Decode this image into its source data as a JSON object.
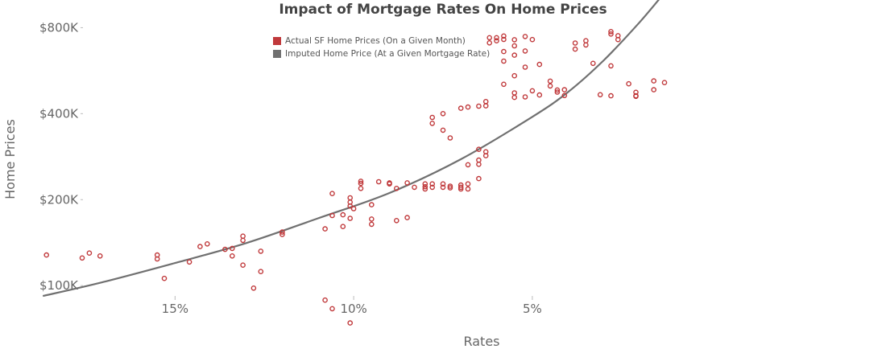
{
  "chart_data": {
    "type": "scatter",
    "title": "Impact of Mortgage Rates On Home Prices",
    "xlabel": "Rates",
    "ylabel": "Home Prices",
    "x_axis_reversed": true,
    "y_scale": "log",
    "xlim": [
      19.9,
      -4.9
    ],
    "ylim": [
      60000,
      1000000
    ],
    "x_ticks": [
      {
        "value": 15,
        "label": "15%"
      },
      {
        "value": 10,
        "label": "10%"
      },
      {
        "value": 5,
        "label": "5%"
      }
    ],
    "y_ticks": [
      {
        "value": 100000,
        "label": "$100K"
      },
      {
        "value": 200000,
        "label": "$200K"
      },
      {
        "value": 400000,
        "label": "$400K"
      },
      {
        "value": 800000,
        "label": "$800K"
      }
    ],
    "grid": false,
    "legend_position": "top-center",
    "series": [
      {
        "name": "Actual SF Home Prices (On a Given Month)",
        "color": "#c0393b",
        "marker": "open-circle",
        "points": [
          [
            18.6,
            128000
          ],
          [
            17.6,
            125000
          ],
          [
            17.4,
            130000
          ],
          [
            17.1,
            127000
          ],
          [
            15.5,
            128000
          ],
          [
            15.5,
            124000
          ],
          [
            15.3,
            106000
          ],
          [
            14.6,
            121000
          ],
          [
            14.3,
            137000
          ],
          [
            14.1,
            140000
          ],
          [
            13.6,
            134000
          ],
          [
            13.4,
            135000
          ],
          [
            13.4,
            127000
          ],
          [
            13.1,
            144000
          ],
          [
            13.1,
            149000
          ],
          [
            13.1,
            118000
          ],
          [
            12.8,
            98000
          ],
          [
            12.6,
            132000
          ],
          [
            12.6,
            112000
          ],
          [
            12.0,
            154000
          ],
          [
            12.0,
            151000
          ],
          [
            10.8,
            158000
          ],
          [
            10.8,
            89000
          ],
          [
            10.6,
            210000
          ],
          [
            10.6,
            176000
          ],
          [
            10.6,
            83000
          ],
          [
            10.3,
            177000
          ],
          [
            10.3,
            161000
          ],
          [
            10.1,
            203000
          ],
          [
            10.1,
            196000
          ],
          [
            10.1,
            190000
          ],
          [
            10.1,
            172000
          ],
          [
            10.1,
            74000
          ],
          [
            9.8,
            232000
          ],
          [
            9.8,
            228000
          ],
          [
            9.8,
            219000
          ],
          [
            10.0,
            186000
          ],
          [
            9.5,
            192000
          ],
          [
            9.5,
            171000
          ],
          [
            9.5,
            164000
          ],
          [
            9.3,
            231000
          ],
          [
            9.0,
            227000
          ],
          [
            9.0,
            229000
          ],
          [
            8.8,
            219000
          ],
          [
            8.8,
            169000
          ],
          [
            8.5,
            229000
          ],
          [
            8.5,
            173000
          ],
          [
            8.3,
            221000
          ],
          [
            8.0,
            227000
          ],
          [
            8.0,
            222000
          ],
          [
            8.0,
            218000
          ],
          [
            7.8,
            388000
          ],
          [
            7.8,
            370000
          ],
          [
            7.8,
            227000
          ],
          [
            7.8,
            221000
          ],
          [
            7.5,
            400000
          ],
          [
            7.5,
            350000
          ],
          [
            7.5,
            227000
          ],
          [
            7.5,
            221000
          ],
          [
            7.3,
            329000
          ],
          [
            7.3,
            223000
          ],
          [
            7.3,
            220000
          ],
          [
            7.0,
            418000
          ],
          [
            7.0,
            225000
          ],
          [
            7.0,
            221000
          ],
          [
            7.0,
            218000
          ],
          [
            6.8,
            422000
          ],
          [
            6.8,
            265000
          ],
          [
            6.8,
            227000
          ],
          [
            6.8,
            218000
          ],
          [
            6.5,
            425000
          ],
          [
            6.5,
            300000
          ],
          [
            6.5,
            275000
          ],
          [
            6.5,
            266000
          ],
          [
            6.5,
            237000
          ],
          [
            6.3,
            441000
          ],
          [
            6.3,
            426000
          ],
          [
            6.3,
            294000
          ],
          [
            6.3,
            285000
          ],
          [
            6.2,
            738000
          ],
          [
            6.2,
            708000
          ],
          [
            6.0,
            738000
          ],
          [
            6.0,
            720000
          ],
          [
            5.8,
            748000
          ],
          [
            5.8,
            728000
          ],
          [
            5.8,
            660000
          ],
          [
            5.8,
            611000
          ],
          [
            5.8,
            507000
          ],
          [
            5.5,
            726000
          ],
          [
            5.5,
            691000
          ],
          [
            5.5,
            641000
          ],
          [
            5.5,
            543000
          ],
          [
            5.5,
            473000
          ],
          [
            5.5,
            456000
          ],
          [
            5.2,
            745000
          ],
          [
            5.2,
            663000
          ],
          [
            5.2,
            582000
          ],
          [
            5.2,
            458000
          ],
          [
            5.0,
            727000
          ],
          [
            5.0,
            481000
          ],
          [
            4.8,
            595000
          ],
          [
            4.8,
            465000
          ],
          [
            4.5,
            520000
          ],
          [
            4.5,
            500000
          ],
          [
            4.3,
            484000
          ],
          [
            4.3,
            476000
          ],
          [
            4.1,
            485000
          ],
          [
            4.1,
            463000
          ],
          [
            3.8,
            707000
          ],
          [
            3.8,
            673000
          ],
          [
            3.5,
            720000
          ],
          [
            3.5,
            696000
          ],
          [
            3.3,
            600000
          ],
          [
            3.1,
            466000
          ],
          [
            2.8,
            775000
          ],
          [
            2.8,
            760000
          ],
          [
            2.8,
            588000
          ],
          [
            2.8,
            462000
          ],
          [
            2.6,
            750000
          ],
          [
            2.6,
            727000
          ],
          [
            2.3,
            509000
          ],
          [
            2.1,
            462000
          ],
          [
            2.1,
            475000
          ],
          [
            2.1,
            460000
          ],
          [
            1.6,
            521000
          ],
          [
            1.6,
            485000
          ],
          [
            1.3,
            514000
          ]
        ]
      },
      {
        "name": "Imputed Home Price (At a Given Mortgage Rate)",
        "color": "#707070",
        "marker": "line",
        "points": [
          [
            18.7,
            92000
          ],
          [
            17.0,
            103000
          ],
          [
            15.0,
            120000
          ],
          [
            13.0,
            141000
          ],
          [
            11.0,
            172000
          ],
          [
            9.0,
            211000
          ],
          [
            7.0,
            277000
          ],
          [
            5.0,
            390000
          ],
          [
            4.0,
            476000
          ],
          [
            3.0,
            615000
          ],
          [
            2.0,
            835000
          ],
          [
            1.3,
            1060000
          ]
        ]
      }
    ]
  }
}
